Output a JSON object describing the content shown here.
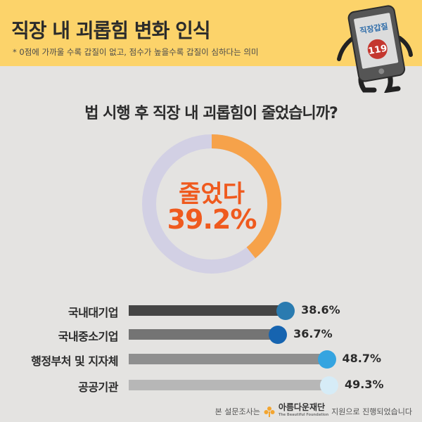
{
  "header": {
    "title": "직장 내 괴롭힘 변화 인식",
    "subtitle": "* 0점에 가까울 수록 갑질이 없고, 점수가 높을수록 갑질이 심하다는 의미",
    "phone_screen_text": "직장갑질",
    "phone_badge_text": "119"
  },
  "question": "법 시행 후 직장 내 괴롭힘이 줄었습니까?",
  "donut": {
    "label": "줄었다",
    "value_text": "39.2%",
    "value": 39.2,
    "fill_color": "#f6a24a",
    "track_color": "#d2d0e4",
    "label_color": "#ef5a1e"
  },
  "chart_data": {
    "type": "bar",
    "orientation": "horizontal",
    "categories": [
      "국내대기업",
      "국내중소기업",
      "행정부처 및 지자체",
      "공공기관"
    ],
    "values": [
      38.6,
      36.7,
      48.7,
      49.3
    ],
    "value_labels": [
      "38.6%",
      "36.7%",
      "48.7%",
      "49.3%"
    ],
    "bar_colors": [
      "#454545",
      "#747474",
      "#8f8f8f",
      "#b7b7b7"
    ],
    "dot_colors": [
      "#2a7bb0",
      "#1664b0",
      "#35a4e0",
      "#d6ecf7"
    ]
  },
  "footer": {
    "prefix": "본 설문조사는",
    "org_name": "아름다운재단",
    "org_sub": "The Beautiful Foundation",
    "suffix": "지원으로 진행되었습니다"
  }
}
